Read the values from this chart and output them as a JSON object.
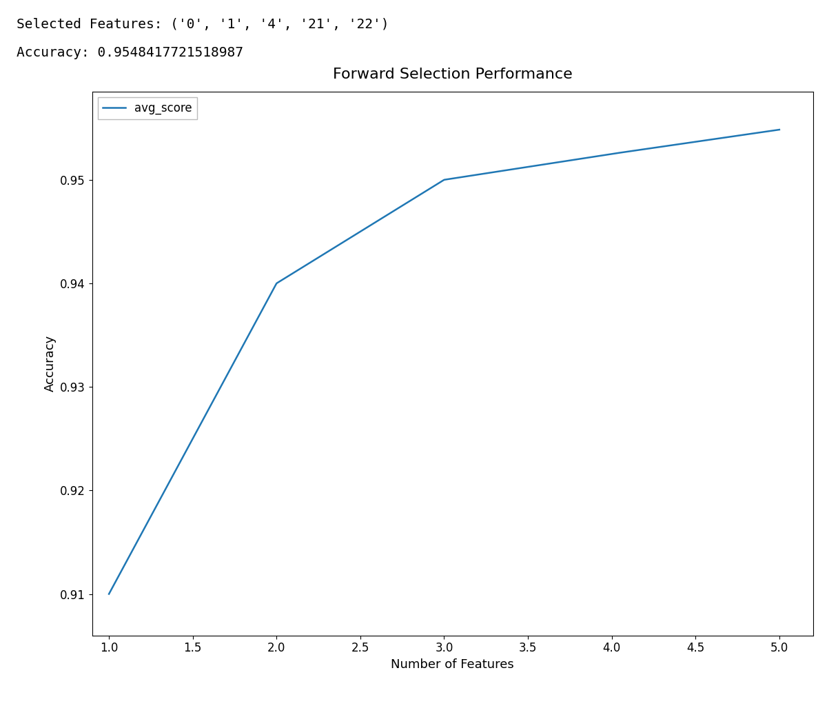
{
  "title": "Forward Selection Performance",
  "xlabel": "Number of Features",
  "ylabel": "Accuracy",
  "line_color": "#1f77b4",
  "line_label": "avg_score",
  "x_values": [
    1,
    2,
    3,
    4,
    5
  ],
  "y_values": [
    0.91,
    0.94,
    0.95,
    0.9525,
    0.9548417721518987
  ],
  "xlim": [
    0.9,
    5.2
  ],
  "ylim": [
    0.906,
    0.9585
  ],
  "header_line1": "Selected Features: ('0', '1', '4', '21', '22')",
  "header_line2": "Accuracy: 0.9548417721518987",
  "title_fontsize": 16,
  "axis_fontsize": 13,
  "tick_fontsize": 12,
  "header_fontsize": 14,
  "line_width": 1.8,
  "background_color": "#ffffff"
}
